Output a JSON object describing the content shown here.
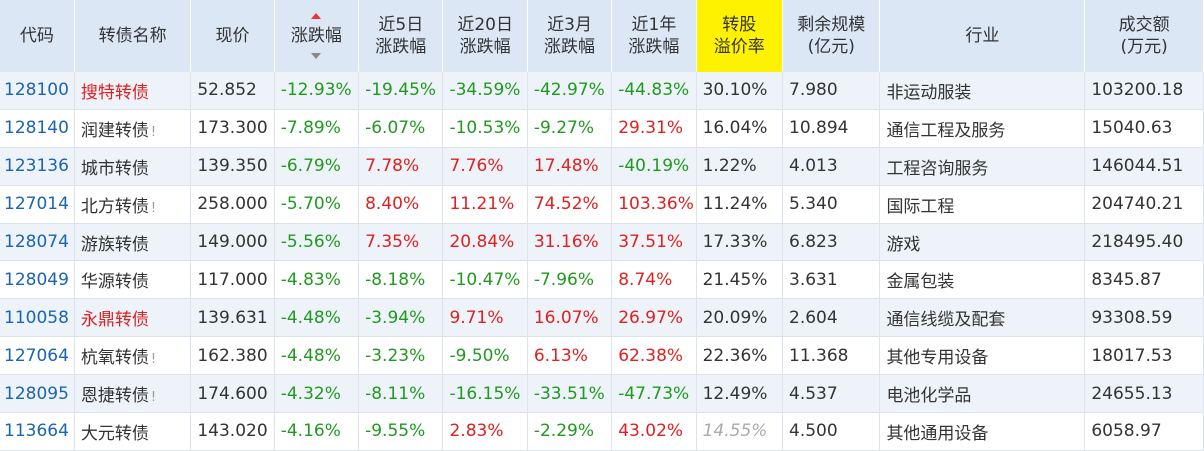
{
  "headers": {
    "code": "代码",
    "name": "转债名称",
    "price": "现价",
    "change": "涨跌幅",
    "d5_a": "近5日",
    "d5_b": "涨跌幅",
    "d20_a": "近20日",
    "d20_b": "涨跌幅",
    "m3_a": "近3月",
    "m3_b": "涨跌幅",
    "y1_a": "近1年",
    "y1_b": "涨跌幅",
    "premium_a": "转股",
    "premium_b": "溢价率",
    "remain_a": "剩余规模",
    "remain_b": "(亿元)",
    "industry": "行业",
    "volume_a": "成交额",
    "volume_b": "(万元)"
  },
  "rows": [
    {
      "code": "128100",
      "name": "搜特转债",
      "name_red": true,
      "flag": "",
      "price": "52.852",
      "change": "-12.93%",
      "d5": "-19.45%",
      "d20": "-34.59%",
      "m3": "-42.97%",
      "y1": "-44.83%",
      "premium": "30.10%",
      "remain": "7.980",
      "industry": "非运动服装",
      "volume": "103200.18"
    },
    {
      "code": "128140",
      "name": "润建转债",
      "name_red": false,
      "flag": "!",
      "price": "173.300",
      "change": "-7.89%",
      "d5": "-6.07%",
      "d20": "-10.53%",
      "m3": "-9.27%",
      "y1": "29.31%",
      "premium": "16.04%",
      "remain": "10.894",
      "industry": "通信工程及服务",
      "volume": "15040.63"
    },
    {
      "code": "123136",
      "name": "城市转债",
      "name_red": false,
      "flag": "",
      "price": "139.350",
      "change": "-6.79%",
      "d5": "7.78%",
      "d20": "7.76%",
      "m3": "17.48%",
      "y1": "-40.19%",
      "premium": "1.22%",
      "remain": "4.013",
      "industry": "工程咨询服务",
      "volume": "146044.51"
    },
    {
      "code": "127014",
      "name": "北方转债",
      "name_red": false,
      "flag": "!",
      "price": "258.000",
      "change": "-5.70%",
      "d5": "8.40%",
      "d20": "11.21%",
      "m3": "74.52%",
      "y1": "103.36%",
      "premium": "11.24%",
      "remain": "5.340",
      "industry": "国际工程",
      "volume": "204740.21"
    },
    {
      "code": "128074",
      "name": "游族转债",
      "name_red": false,
      "flag": "",
      "price": "149.000",
      "change": "-5.56%",
      "d5": "7.35%",
      "d20": "20.84%",
      "m3": "31.16%",
      "y1": "37.51%",
      "premium": "17.33%",
      "remain": "6.823",
      "industry": "游戏",
      "volume": "218495.40"
    },
    {
      "code": "128049",
      "name": "华源转债",
      "name_red": false,
      "flag": "",
      "price": "117.000",
      "change": "-4.83%",
      "d5": "-8.18%",
      "d20": "-10.47%",
      "m3": "-7.96%",
      "y1": "8.74%",
      "premium": "21.45%",
      "remain": "3.631",
      "industry": "金属包装",
      "volume": "8345.87"
    },
    {
      "code": "110058",
      "name": "永鼎转债",
      "name_red": true,
      "flag": "",
      "price": "139.631",
      "change": "-4.48%",
      "d5": "-3.94%",
      "d20": "9.71%",
      "m3": "16.07%",
      "y1": "26.97%",
      "premium": "20.09%",
      "remain": "2.604",
      "industry": "通信线缆及配套",
      "volume": "93308.59"
    },
    {
      "code": "127064",
      "name": "杭氧转债",
      "name_red": false,
      "flag": "!",
      "price": "162.380",
      "change": "-4.48%",
      "d5": "-3.23%",
      "d20": "-9.50%",
      "m3": "6.13%",
      "y1": "62.38%",
      "premium": "22.36%",
      "remain": "11.368",
      "industry": "其他专用设备",
      "volume": "18017.53"
    },
    {
      "code": "128095",
      "name": "恩捷转债",
      "name_red": false,
      "flag": "!",
      "price": "174.600",
      "change": "-4.32%",
      "d5": "-8.11%",
      "d20": "-16.15%",
      "m3": "-33.51%",
      "y1": "-47.73%",
      "premium": "12.49%",
      "remain": "4.537",
      "industry": "电池化学品",
      "volume": "24655.13"
    },
    {
      "code": "113664",
      "name": "大元转债",
      "name_red": false,
      "flag": "",
      "price": "143.020",
      "change": "-4.16%",
      "d5": "-9.55%",
      "d20": "2.83%",
      "m3": "-2.29%",
      "y1": "43.02%",
      "premium": "14.55%",
      "premium_italic": true,
      "remain": "4.500",
      "industry": "其他通用设备",
      "volume": "6058.97"
    }
  ],
  "colors": {
    "up": "#e02020",
    "down": "#1f9a1f",
    "code": "#1a64b4",
    "header_bg": "#dbe7f5",
    "highlight": "#fef200"
  }
}
